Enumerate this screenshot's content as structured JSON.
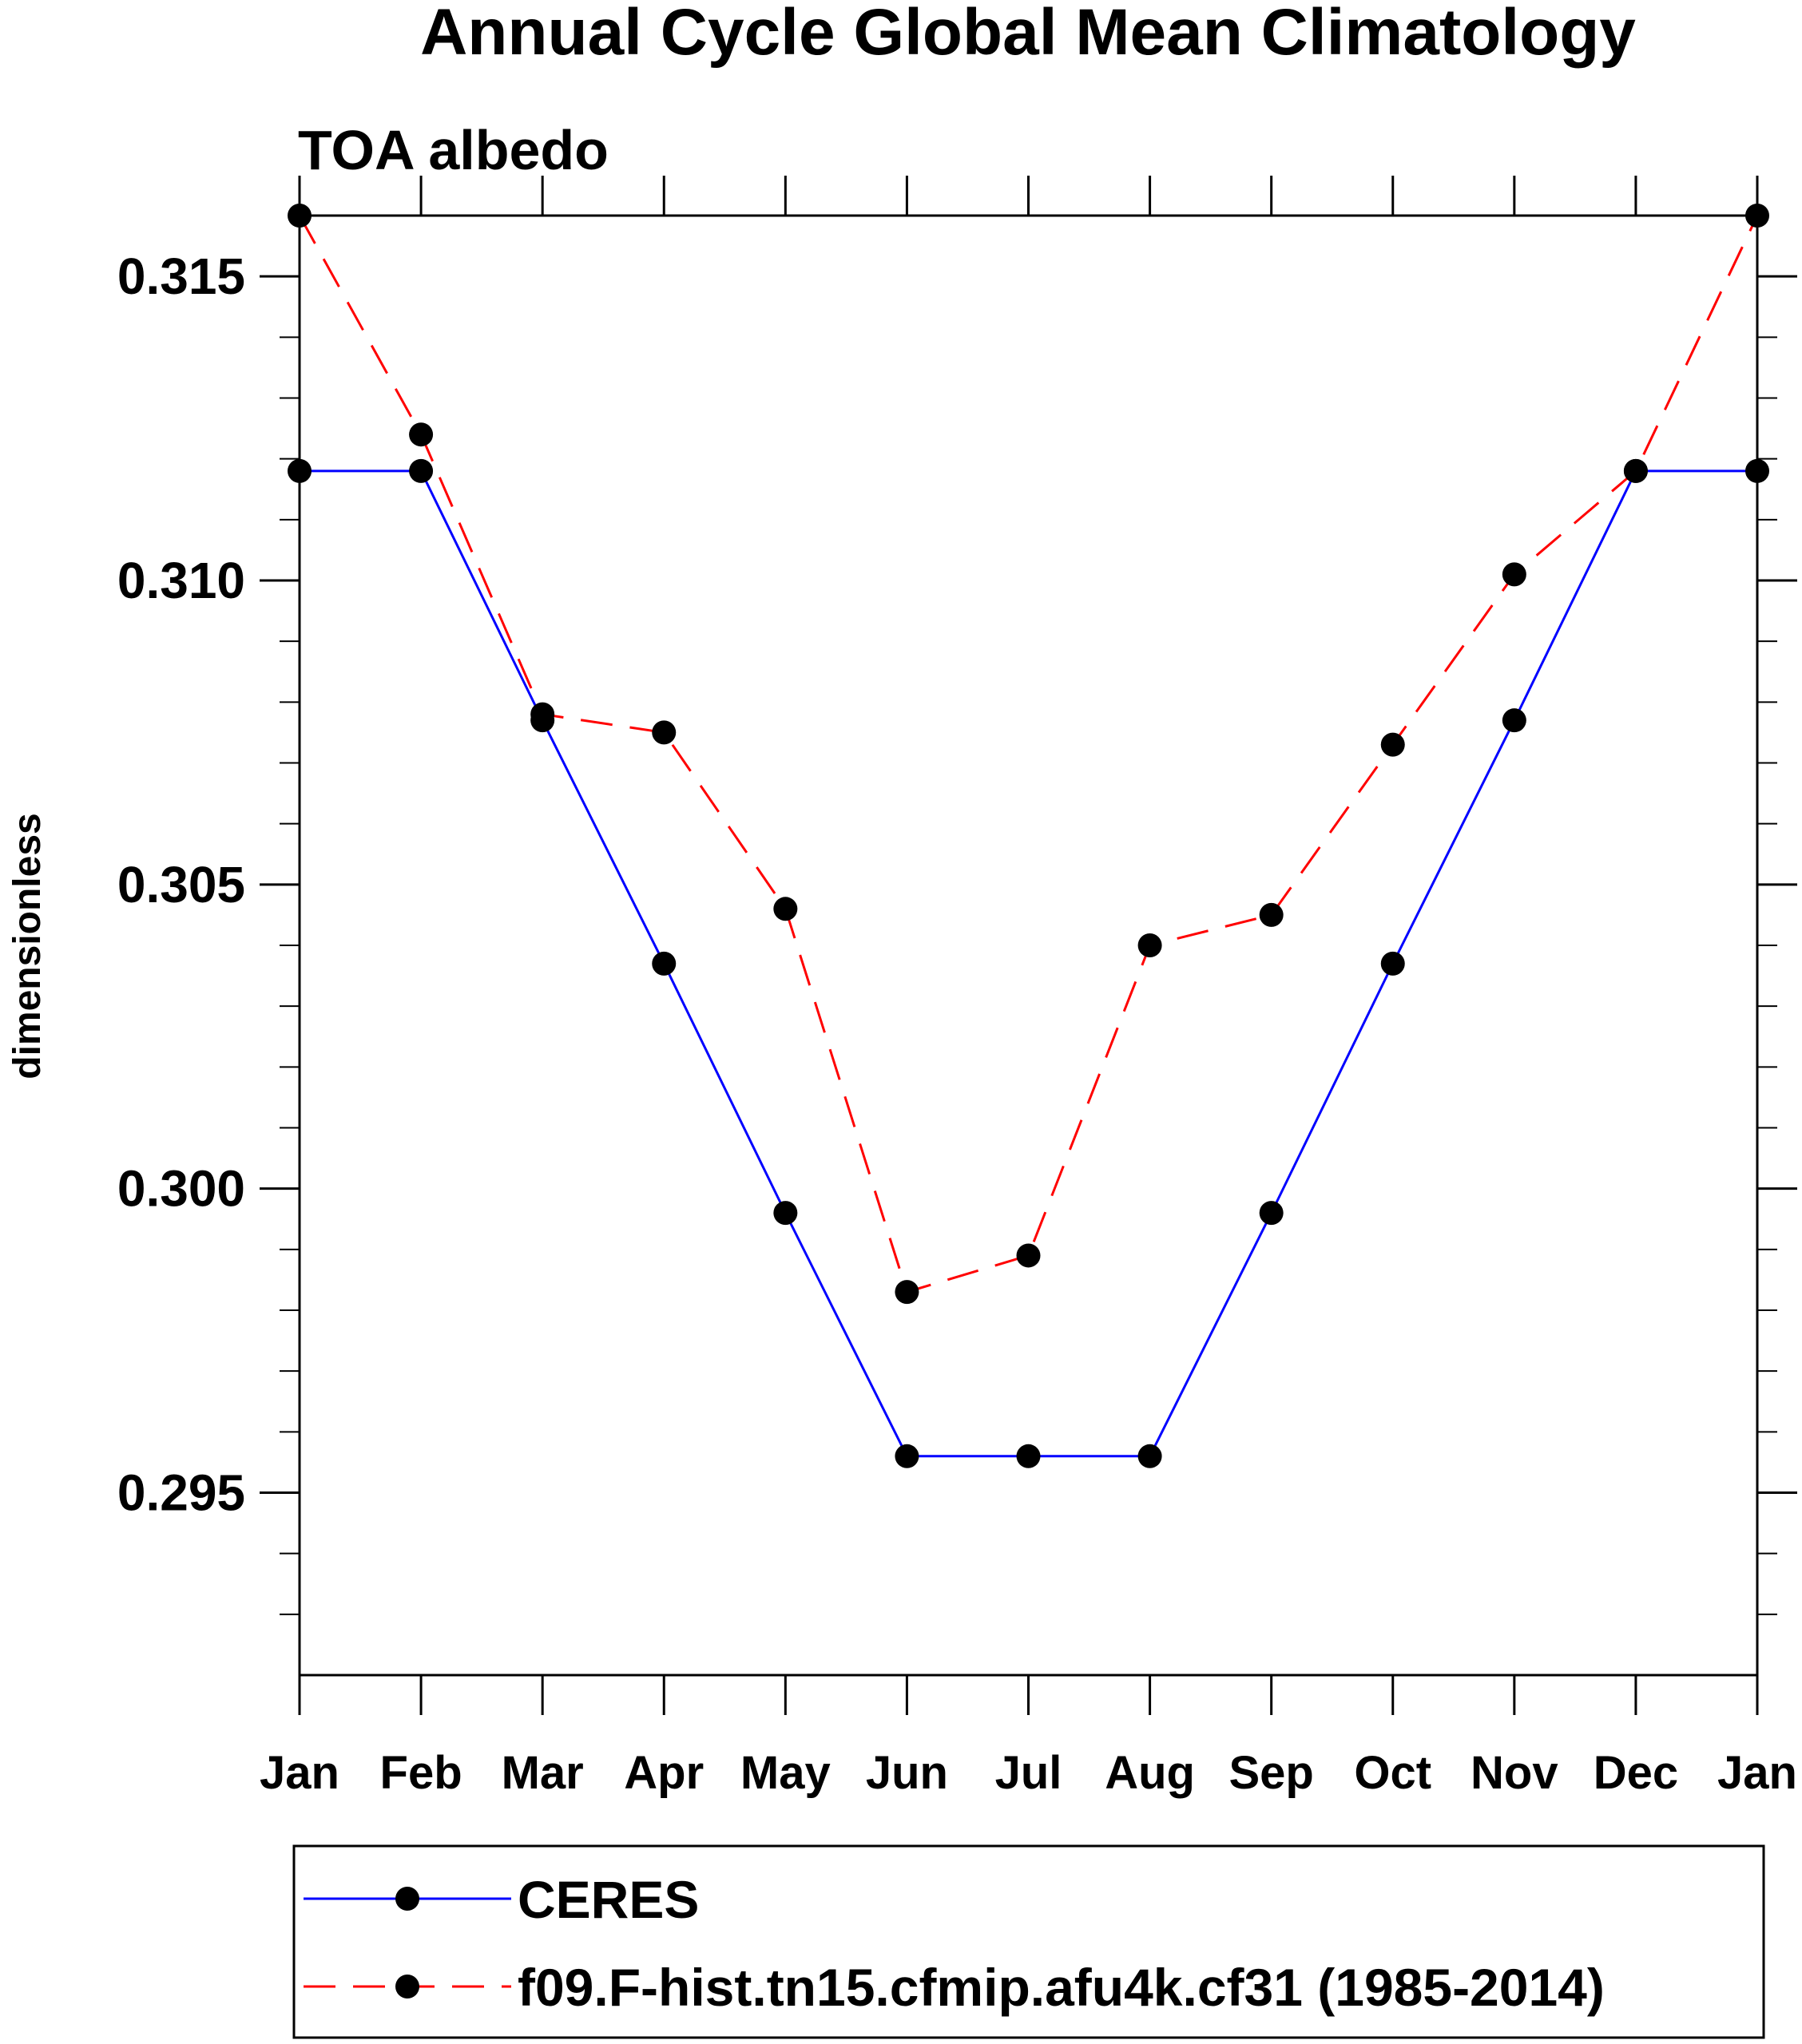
{
  "chart_data": {
    "type": "line",
    "title": "Annual Cycle Global Mean Climatology",
    "subtitle": "TOA albedo",
    "xlabel": "",
    "ylabel": "dimensionless",
    "categories": [
      "Jan",
      "Feb",
      "Mar",
      "Apr",
      "May",
      "Jun",
      "Jul",
      "Aug",
      "Sep",
      "Oct",
      "Nov",
      "Dec",
      "Jan"
    ],
    "ylim": [
      0.292,
      0.316
    ],
    "yticks": [
      0.295,
      0.3,
      0.305,
      0.31,
      0.315
    ],
    "ytick_labels": [
      "0.295",
      "0.300",
      "0.305",
      "0.310",
      "0.315"
    ],
    "minor_step": 0.001,
    "grid": false,
    "legend_position": "bottom",
    "series": [
      {
        "name": "CERES",
        "color": "#0000ff",
        "dash": "solid",
        "values": [
          0.3118,
          0.3118,
          0.3077,
          0.3037,
          0.2996,
          0.2956,
          0.2956,
          0.2956,
          0.2996,
          0.3037,
          0.3077,
          0.3118,
          0.3118
        ]
      },
      {
        "name": "f09.F-hist.tn15.cfmip.afu4k.cf31 (1985-2014)",
        "color": "#ff0000",
        "dash": "dashed",
        "values": [
          0.316,
          0.3124,
          0.3078,
          0.3075,
          0.3046,
          0.2983,
          0.2989,
          0.304,
          0.3045,
          0.3073,
          0.3101,
          0.3118,
          0.316
        ]
      }
    ]
  }
}
